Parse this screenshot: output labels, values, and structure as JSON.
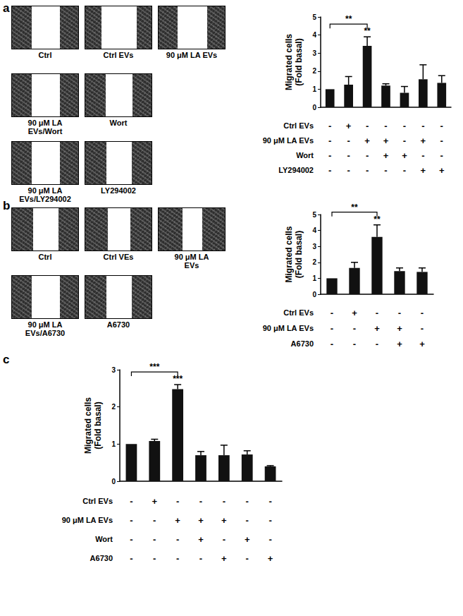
{
  "chart_data": [
    {
      "type": "bar",
      "panel": "a",
      "y_label": "Migrated cells\n(Fold basal)",
      "categories": [
        null,
        null,
        null,
        null,
        null,
        null,
        null
      ],
      "values": [
        1.0,
        1.25,
        3.4,
        1.2,
        0.8,
        1.55,
        1.35
      ],
      "errors": [
        0.0,
        0.45,
        0.5,
        0.1,
        0.35,
        0.8,
        0.4
      ],
      "color": "#111111",
      "ylim": [
        0,
        5
      ],
      "yticks": [
        0,
        1,
        2,
        3,
        4,
        5
      ],
      "tick_labels": "y",
      "grid": false,
      "treatments": [
        {
          "name": "Ctrl EVs",
          "signs": [
            "-",
            "+",
            "-",
            "-",
            "-",
            "-",
            "-"
          ]
        },
        {
          "name": "90 μM LA EVs",
          "signs": [
            "-",
            "-",
            "+",
            "+",
            "-",
            "+",
            "-"
          ]
        },
        {
          "name": "Wort",
          "signs": [
            "-",
            "-",
            "-",
            "+",
            "+",
            "-",
            "-"
          ]
        },
        {
          "name": "LY294002",
          "signs": [
            "-",
            "-",
            "-",
            "-",
            "-",
            "+",
            "+"
          ]
        }
      ],
      "bracket": {
        "from": 0,
        "to": 2,
        "label": "**"
      },
      "bar_marks": [
        {
          "index": 2,
          "label": "**"
        }
      ],
      "images": [
        {
          "label": "Ctrl"
        },
        {
          "label": "Ctrl EVs"
        },
        {
          "label": "90 μM LA EVs"
        },
        {
          "label": "90 μM LA\nEVs/Wort"
        },
        {
          "label": "Wort"
        },
        {
          "label": "90 μM LA\nEVs/LY294002"
        },
        {
          "label": "LY294002"
        }
      ]
    },
    {
      "type": "bar",
      "panel": "b",
      "y_label": "Migrated cells\n(Fold basal)",
      "categories": [
        null,
        null,
        null,
        null,
        null
      ],
      "values": [
        1.0,
        1.65,
        3.6,
        1.45,
        1.4
      ],
      "errors": [
        0.0,
        0.35,
        0.75,
        0.2,
        0.25
      ],
      "color": "#111111",
      "ylim": [
        0,
        5
      ],
      "yticks": [
        0,
        1,
        2,
        3,
        4,
        5
      ],
      "tick_labels": "y",
      "grid": false,
      "treatments": [
        {
          "name": "Ctrl EVs",
          "signs": [
            "-",
            "+",
            "-",
            "-",
            "-"
          ]
        },
        {
          "name": "90 μM LA EVs",
          "signs": [
            "-",
            "-",
            "+",
            "+",
            "-"
          ]
        },
        {
          "name": "A6730",
          "signs": [
            "-",
            "-",
            "-",
            "+",
            "+"
          ]
        }
      ],
      "bracket": {
        "from": 0,
        "to": 2,
        "label": "**"
      },
      "bar_marks": [
        {
          "index": 2,
          "label": "**"
        }
      ],
      "images": [
        {
          "label": "Ctrl"
        },
        {
          "label": "Ctrl VEs"
        },
        {
          "label": "90 μM LA\nEVs"
        },
        {
          "label": "90 μM LA\nEVs/A6730"
        },
        {
          "label": "A6730"
        }
      ]
    },
    {
      "type": "bar",
      "panel": "c",
      "y_label": "Migrated cells\n(Fold basal)",
      "categories": [
        null,
        null,
        null,
        null,
        null,
        null,
        null
      ],
      "values": [
        1.0,
        1.08,
        2.48,
        0.7,
        0.7,
        0.72,
        0.4
      ],
      "errors": [
        0.0,
        0.05,
        0.12,
        0.1,
        0.27,
        0.1,
        0.02
      ],
      "color": "#111111",
      "ylim": [
        0,
        3
      ],
      "yticks": [
        0,
        1,
        2,
        3
      ],
      "tick_labels": "y",
      "grid": false,
      "treatments": [
        {
          "name": "Ctrl EVs",
          "signs": [
            "-",
            "+",
            "-",
            "-",
            "-",
            "-",
            "-"
          ]
        },
        {
          "name": "90 μM LA EVs",
          "signs": [
            "-",
            "-",
            "+",
            "+",
            "+",
            "-",
            "-"
          ]
        },
        {
          "name": "Wort",
          "signs": [
            "-",
            "-",
            "-",
            "+",
            "-",
            "+",
            "-"
          ]
        },
        {
          "name": "A6730",
          "signs": [
            "-",
            "-",
            "-",
            "-",
            "+",
            "-",
            "+"
          ]
        }
      ],
      "bracket": {
        "from": 0,
        "to": 2,
        "label": "***"
      },
      "bar_marks": [
        {
          "index": 2,
          "label": "***"
        }
      ]
    }
  ]
}
